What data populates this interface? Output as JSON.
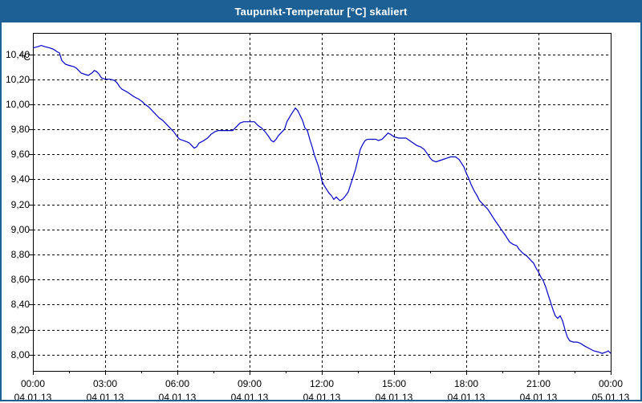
{
  "window": {
    "title": "Taupunkt-Temperatur [°C] skaliert"
  },
  "colors": {
    "accent_blue": "#1d6096",
    "line_blue": "#0000c8",
    "axis_black": "#000000",
    "background": "#ffffff"
  },
  "chart_data": {
    "type": "line",
    "title": "Taupunkt-Temperatur [°C] skaliert",
    "unit_label": "°C",
    "series_name": "Taupunkt-Temperatur",
    "grid": "dashed",
    "legend_position": "none",
    "x_axis": {
      "range_hours": [
        0,
        24
      ],
      "minor_tick_interval_hours": 1.5,
      "major_ticks": [
        {
          "hour": 0,
          "time": "00:00",
          "date": "04.01.13"
        },
        {
          "hour": 3,
          "time": "03:00",
          "date": "04.01.13"
        },
        {
          "hour": 6,
          "time": "06:00",
          "date": "04.01.13"
        },
        {
          "hour": 9,
          "time": "09:00",
          "date": "04.01.13"
        },
        {
          "hour": 12,
          "time": "12:00",
          "date": "04.01.13"
        },
        {
          "hour": 15,
          "time": "15:00",
          "date": "04.01.13"
        },
        {
          "hour": 18,
          "time": "18:00",
          "date": "04.01.13"
        },
        {
          "hour": 21,
          "time": "21:00",
          "date": "04.01.13"
        },
        {
          "hour": 24,
          "time": "00:00",
          "date": "05.01.13"
        }
      ]
    },
    "y_axis": {
      "ylim": [
        7.87,
        10.57
      ],
      "ticks": [
        {
          "value": 10.4,
          "label": "10,40"
        },
        {
          "value": 10.2,
          "label": "10,20"
        },
        {
          "value": 10.0,
          "label": "10,00"
        },
        {
          "value": 9.8,
          "label": "9,80"
        },
        {
          "value": 9.6,
          "label": "9,60"
        },
        {
          "value": 9.4,
          "label": "9,40"
        },
        {
          "value": 9.2,
          "label": "9,20"
        },
        {
          "value": 9.0,
          "label": "9,00"
        },
        {
          "value": 8.8,
          "label": "8,80"
        },
        {
          "value": 8.6,
          "label": "8,60"
        },
        {
          "value": 8.4,
          "label": "8,40"
        },
        {
          "value": 8.2,
          "label": "8,20"
        },
        {
          "value": 8.0,
          "label": "8,00"
        }
      ]
    },
    "points": [
      [
        0,
        10.45
      ],
      [
        0.2,
        10.46
      ],
      [
        0.35,
        10.47
      ],
      [
        0.5,
        10.46
      ],
      [
        0.7,
        10.45
      ],
      [
        0.85,
        10.44
      ],
      [
        1,
        10.42
      ],
      [
        1.1,
        10.41
      ],
      [
        1.2,
        10.35
      ],
      [
        1.35,
        10.32
      ],
      [
        1.5,
        10.31
      ],
      [
        1.7,
        10.3
      ],
      [
        1.8,
        10.29
      ],
      [
        1.9,
        10.27
      ],
      [
        2,
        10.25
      ],
      [
        2.15,
        10.24
      ],
      [
        2.3,
        10.23
      ],
      [
        2.45,
        10.25
      ],
      [
        2.55,
        10.27
      ],
      [
        2.65,
        10.26
      ],
      [
        2.75,
        10.24
      ],
      [
        2.85,
        10.21
      ],
      [
        3,
        10.2
      ],
      [
        3.2,
        10.2
      ],
      [
        3.4,
        10.19
      ],
      [
        3.5,
        10.17
      ],
      [
        3.6,
        10.14
      ],
      [
        3.7,
        10.12
      ],
      [
        3.9,
        10.1
      ],
      [
        4.05,
        10.08
      ],
      [
        4.2,
        10.06
      ],
      [
        4.4,
        10.04
      ],
      [
        4.55,
        10.02
      ],
      [
        4.65,
        10.0
      ],
      [
        4.8,
        9.98
      ],
      [
        5,
        9.94
      ],
      [
        5.1,
        9.92
      ],
      [
        5.25,
        9.89
      ],
      [
        5.4,
        9.87
      ],
      [
        5.55,
        9.84
      ],
      [
        5.75,
        9.8
      ],
      [
        5.85,
        9.78
      ],
      [
        6,
        9.74
      ],
      [
        6.1,
        9.72
      ],
      [
        6.25,
        9.71
      ],
      [
        6.4,
        9.7
      ],
      [
        6.5,
        9.69
      ],
      [
        6.6,
        9.67
      ],
      [
        6.7,
        9.65
      ],
      [
        6.8,
        9.66
      ],
      [
        6.9,
        9.69
      ],
      [
        7,
        9.7
      ],
      [
        7.1,
        9.71
      ],
      [
        7.25,
        9.73
      ],
      [
        7.4,
        9.76
      ],
      [
        7.55,
        9.78
      ],
      [
        7.7,
        9.79
      ],
      [
        7.9,
        9.79
      ],
      [
        8.1,
        9.79
      ],
      [
        8.3,
        9.79
      ],
      [
        8.45,
        9.82
      ],
      [
        8.6,
        9.85
      ],
      [
        8.75,
        9.86
      ],
      [
        9,
        9.86
      ],
      [
        9.2,
        9.86
      ],
      [
        9.35,
        9.83
      ],
      [
        9.5,
        9.81
      ],
      [
        9.65,
        9.78
      ],
      [
        9.8,
        9.74
      ],
      [
        9.9,
        9.71
      ],
      [
        10,
        9.7
      ],
      [
        10.1,
        9.72
      ],
      [
        10.2,
        9.75
      ],
      [
        10.35,
        9.78
      ],
      [
        10.45,
        9.8
      ],
      [
        10.55,
        9.86
      ],
      [
        10.7,
        9.91
      ],
      [
        10.8,
        9.94
      ],
      [
        10.9,
        9.97
      ],
      [
        11,
        9.95
      ],
      [
        11.1,
        9.91
      ],
      [
        11.2,
        9.87
      ],
      [
        11.3,
        9.81
      ],
      [
        11.4,
        9.79
      ],
      [
        11.5,
        9.72
      ],
      [
        11.6,
        9.66
      ],
      [
        11.7,
        9.59
      ],
      [
        11.85,
        9.51
      ],
      [
        11.95,
        9.44
      ],
      [
        12,
        9.39
      ],
      [
        12.1,
        9.35
      ],
      [
        12.2,
        9.32
      ],
      [
        12.3,
        9.29
      ],
      [
        12.4,
        9.27
      ],
      [
        12.5,
        9.24
      ],
      [
        12.6,
        9.26
      ],
      [
        12.75,
        9.23
      ],
      [
        12.85,
        9.24
      ],
      [
        12.95,
        9.26
      ],
      [
        13.1,
        9.3
      ],
      [
        13.2,
        9.36
      ],
      [
        13.3,
        9.42
      ],
      [
        13.4,
        9.48
      ],
      [
        13.5,
        9.56
      ],
      [
        13.6,
        9.64
      ],
      [
        13.7,
        9.68
      ],
      [
        13.8,
        9.71
      ],
      [
        13.9,
        9.72
      ],
      [
        14.1,
        9.72
      ],
      [
        14.25,
        9.72
      ],
      [
        14.35,
        9.71
      ],
      [
        14.5,
        9.72
      ],
      [
        14.6,
        9.74
      ],
      [
        14.75,
        9.77
      ],
      [
        14.85,
        9.76
      ],
      [
        15,
        9.74
      ],
      [
        15.2,
        9.73
      ],
      [
        15.35,
        9.73
      ],
      [
        15.5,
        9.73
      ],
      [
        15.65,
        9.71
      ],
      [
        15.8,
        9.69
      ],
      [
        15.95,
        9.67
      ],
      [
        16.1,
        9.66
      ],
      [
        16.25,
        9.64
      ],
      [
        16.4,
        9.6
      ],
      [
        16.5,
        9.57
      ],
      [
        16.6,
        9.55
      ],
      [
        16.75,
        9.54
      ],
      [
        16.9,
        9.55
      ],
      [
        17.05,
        9.56
      ],
      [
        17.2,
        9.57
      ],
      [
        17.35,
        9.58
      ],
      [
        17.55,
        9.58
      ],
      [
        17.7,
        9.56
      ],
      [
        17.8,
        9.53
      ],
      [
        17.9,
        9.5
      ],
      [
        18,
        9.45
      ],
      [
        18.1,
        9.41
      ],
      [
        18.2,
        9.36
      ],
      [
        18.35,
        9.3
      ],
      [
        18.45,
        9.27
      ],
      [
        18.55,
        9.23
      ],
      [
        18.7,
        9.2
      ],
      [
        18.8,
        9.18
      ],
      [
        18.9,
        9.16
      ],
      [
        19,
        9.13
      ],
      [
        19.1,
        9.1
      ],
      [
        19.2,
        9.07
      ],
      [
        19.35,
        9.03
      ],
      [
        19.45,
        9.0
      ],
      [
        19.6,
        8.96
      ],
      [
        19.7,
        8.93
      ],
      [
        19.8,
        8.9
      ],
      [
        19.95,
        8.88
      ],
      [
        20.1,
        8.87
      ],
      [
        20.2,
        8.84
      ],
      [
        20.35,
        8.81
      ],
      [
        20.5,
        8.79
      ],
      [
        20.6,
        8.77
      ],
      [
        20.7,
        8.75
      ],
      [
        20.8,
        8.73
      ],
      [
        20.9,
        8.69
      ],
      [
        21,
        8.66
      ],
      [
        21.1,
        8.62
      ],
      [
        21.2,
        8.59
      ],
      [
        21.3,
        8.54
      ],
      [
        21.4,
        8.48
      ],
      [
        21.5,
        8.42
      ],
      [
        21.6,
        8.36
      ],
      [
        21.7,
        8.31
      ],
      [
        21.8,
        8.29
      ],
      [
        21.9,
        8.31
      ],
      [
        22,
        8.27
      ],
      [
        22.1,
        8.2
      ],
      [
        22.2,
        8.14
      ],
      [
        22.3,
        8.11
      ],
      [
        22.45,
        8.1
      ],
      [
        22.6,
        8.1
      ],
      [
        22.75,
        8.09
      ],
      [
        22.9,
        8.07
      ],
      [
        23.1,
        8.05
      ],
      [
        23.3,
        8.03
      ],
      [
        23.5,
        8.02
      ],
      [
        23.65,
        8.01
      ],
      [
        23.8,
        8.02
      ],
      [
        23.9,
        8.03
      ],
      [
        24,
        8.01
      ]
    ]
  }
}
